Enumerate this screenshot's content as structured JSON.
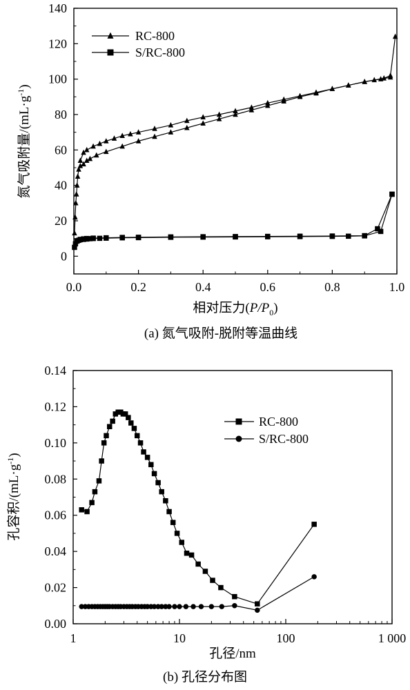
{
  "chart_data": [
    {
      "type": "line",
      "title": "",
      "caption": "(a) 氮气吸附-脱附等温曲线",
      "xlabel_text": "相对压力(",
      "xlabel_italic": "P/P",
      "xlabel_sub": "0",
      "xlabel_close": ")",
      "ylabel_text": "氮气吸附量/(mL·g",
      "ylabel_sup": "-1",
      "ylabel_close": ")",
      "xlim": [
        0,
        1.0
      ],
      "ylim": [
        -10,
        140
      ],
      "x_scale": "linear",
      "x_ticks": [
        0,
        0.2,
        0.4,
        0.6,
        0.8,
        1.0
      ],
      "x_tick_labels": [
        "0.0",
        "0.2",
        "0.4",
        "0.6",
        "0.8",
        "1.0"
      ],
      "y_ticks": [
        0,
        20,
        40,
        60,
        80,
        100,
        120,
        140
      ],
      "y_tick_labels": [
        "0",
        "20",
        "40",
        "60",
        "80",
        "100",
        "120",
        "140"
      ],
      "grid": false,
      "legend_position": "top-left",
      "series": [
        {
          "name": "RC-800",
          "marker": "triangle",
          "color": "#000000",
          "branches": [
            {
              "label": "adsorption",
              "x": [
                0.002,
                0.004,
                0.006,
                0.008,
                0.01,
                0.012,
                0.015,
                0.02,
                0.03,
                0.04,
                0.05,
                0.07,
                0.1,
                0.15,
                0.2,
                0.25,
                0.3,
                0.35,
                0.4,
                0.45,
                0.5,
                0.55,
                0.6,
                0.65,
                0.7,
                0.75,
                0.8,
                0.85,
                0.9,
                0.93,
                0.96,
                0.98,
                0.995
              ],
              "y": [
                13,
                22,
                30,
                35,
                40,
                45,
                49,
                51,
                52,
                54,
                55,
                57,
                59,
                62,
                65,
                67.5,
                70,
                72.5,
                75,
                77.5,
                80,
                82.5,
                85,
                87.5,
                90,
                92,
                94.5,
                96.5,
                98.5,
                99.5,
                100.5,
                102,
                124
              ]
            },
            {
              "label": "desorption",
              "x": [
                0.98,
                0.95,
                0.9,
                0.85,
                0.8,
                0.75,
                0.7,
                0.65,
                0.6,
                0.55,
                0.5,
                0.45,
                0.4,
                0.35,
                0.3,
                0.25,
                0.2,
                0.175,
                0.15,
                0.125,
                0.1,
                0.08,
                0.06,
                0.04,
                0.03,
                0.02
              ],
              "y": [
                101,
                100,
                98.5,
                96.5,
                94.5,
                92.5,
                90.5,
                88.5,
                86.5,
                84,
                82,
                80,
                78.5,
                76.5,
                74,
                72,
                70,
                69,
                68,
                66.5,
                65,
                63.5,
                62,
                60,
                58.5,
                54
              ]
            }
          ]
        },
        {
          "name": "S/RC-800",
          "marker": "square",
          "color": "#000000",
          "branches": [
            {
              "label": "adsorption",
              "x": [
                0.002,
                0.005,
                0.01,
                0.015,
                0.02,
                0.03,
                0.04,
                0.05,
                0.06,
                0.08,
                0.1,
                0.15,
                0.2,
                0.3,
                0.4,
                0.5,
                0.6,
                0.7,
                0.8,
                0.85,
                0.9,
                0.95,
                0.985
              ],
              "y": [
                5,
                7,
                8.5,
                9,
                9.3,
                9.5,
                9.7,
                9.9,
                10,
                10.1,
                10.2,
                10.4,
                10.5,
                10.7,
                10.8,
                10.9,
                11,
                11.1,
                11.2,
                11.3,
                11.5,
                14,
                35
              ]
            },
            {
              "label": "desorption",
              "x": [
                0.985,
                0.94,
                0.9,
                0.8,
                0.7,
                0.6,
                0.5,
                0.4,
                0.3,
                0.2,
                0.15,
                0.1,
                0.06,
                0.04,
                0.03,
                0.02
              ],
              "y": [
                35,
                15.5,
                11.6,
                11.4,
                11.3,
                11.2,
                11.1,
                11,
                10.9,
                10.7,
                10.6,
                10.4,
                10.2,
                10,
                9.8,
                9.5
              ]
            }
          ]
        }
      ]
    },
    {
      "type": "line",
      "title": "",
      "caption": "(b) 孔径分布图",
      "xlabel": "孔径/nm",
      "ylabel_text": "孔容积/(mL·g",
      "ylabel_sup": "-1",
      "ylabel_close": ")",
      "xlim": [
        1,
        1000
      ],
      "ylim": [
        0,
        0.14
      ],
      "x_scale": "log",
      "x_ticks": [
        1,
        10,
        100,
        1000
      ],
      "x_tick_labels": [
        "1",
        "10",
        "100",
        "1 000"
      ],
      "y_ticks": [
        0,
        0.02,
        0.04,
        0.06,
        0.08,
        0.1,
        0.12,
        0.14
      ],
      "y_tick_labels": [
        "0.00",
        "0.02",
        "0.04",
        "0.06",
        "0.08",
        "0.10",
        "0.12",
        "0.14"
      ],
      "grid": false,
      "legend_position": "top-right",
      "series": [
        {
          "name": "RC-800",
          "marker": "square",
          "color": "#000000",
          "x": [
            1.2,
            1.35,
            1.5,
            1.6,
            1.75,
            1.85,
            1.95,
            2.05,
            2.2,
            2.35,
            2.5,
            2.65,
            2.8,
            2.95,
            3.1,
            3.3,
            3.5,
            3.75,
            4.0,
            4.3,
            4.6,
            5.0,
            5.4,
            5.8,
            6.3,
            6.8,
            7.4,
            8.0,
            8.7,
            9.5,
            10.5,
            11.7,
            13.0,
            15.0,
            17.5,
            20.5,
            24.5,
            33.0,
            54.0,
            185.0
          ],
          "y": [
            0.063,
            0.062,
            0.067,
            0.073,
            0.079,
            0.09,
            0.1,
            0.104,
            0.109,
            0.112,
            0.116,
            0.117,
            0.117,
            0.116,
            0.116,
            0.114,
            0.111,
            0.108,
            0.104,
            0.1,
            0.095,
            0.092,
            0.088,
            0.083,
            0.078,
            0.073,
            0.068,
            0.062,
            0.056,
            0.05,
            0.045,
            0.039,
            0.038,
            0.033,
            0.029,
            0.024,
            0.02,
            0.015,
            0.011,
            0.055
          ]
        },
        {
          "name": "S/RC-800",
          "marker": "circle",
          "color": "#000000",
          "x": [
            1.2,
            1.3,
            1.4,
            1.5,
            1.6,
            1.7,
            1.8,
            1.9,
            2.0,
            2.1,
            2.2,
            2.35,
            2.5,
            2.65,
            2.8,
            3.0,
            3.2,
            3.4,
            3.6,
            3.85,
            4.1,
            4.4,
            4.7,
            5.0,
            5.4,
            5.8,
            6.3,
            6.8,
            7.4,
            8.0,
            9.0,
            10.0,
            11.5,
            13.5,
            16.0,
            20.0,
            25.0,
            33.0,
            54.0,
            185.0
          ],
          "y": [
            0.0095,
            0.0095,
            0.0095,
            0.0095,
            0.0095,
            0.0095,
            0.0095,
            0.0095,
            0.0095,
            0.0095,
            0.0095,
            0.0095,
            0.0095,
            0.0095,
            0.0095,
            0.0095,
            0.0095,
            0.0095,
            0.0095,
            0.0095,
            0.0095,
            0.0095,
            0.0095,
            0.0095,
            0.0095,
            0.0095,
            0.0095,
            0.0095,
            0.0095,
            0.0095,
            0.0095,
            0.0095,
            0.0095,
            0.0095,
            0.0095,
            0.0095,
            0.0095,
            0.01,
            0.0075,
            0.026
          ]
        }
      ]
    }
  ]
}
